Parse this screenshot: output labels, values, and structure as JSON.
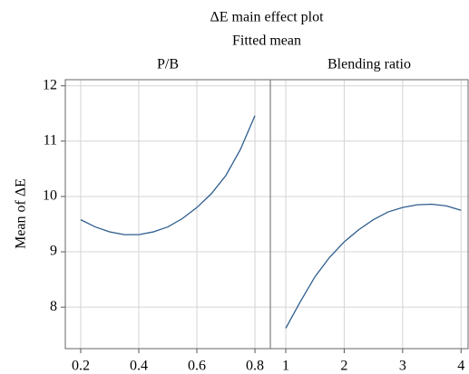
{
  "chart_data": [
    {
      "type": "line",
      "title": "ΔE main effect plot",
      "subtitle": "Fitted mean",
      "y_label": "Mean of ΔE",
      "panel_title": "P/B",
      "color": "#2e5d8e",
      "grid": true,
      "x": [
        0.2,
        0.25,
        0.3,
        0.35,
        0.4,
        0.45,
        0.5,
        0.55,
        0.6,
        0.65,
        0.7,
        0.75,
        0.8
      ],
      "values": [
        9.58,
        9.45,
        9.36,
        9.31,
        9.31,
        9.36,
        9.45,
        9.6,
        9.8,
        10.05,
        10.38,
        10.85,
        11.46
      ],
      "xlim": [
        0.147,
        0.853
      ],
      "xticks": [
        0.2,
        0.4,
        0.6,
        0.8
      ],
      "ylim": [
        7.25,
        12.11
      ],
      "yticks": [
        8,
        9,
        10,
        11,
        12
      ]
    },
    {
      "type": "line",
      "panel_title": "Blending ratio",
      "color": "#2e5d8e",
      "grid": true,
      "x": [
        1,
        1.25,
        1.5,
        1.75,
        2,
        2.25,
        2.5,
        2.75,
        3,
        3.25,
        3.5,
        3.75,
        4
      ],
      "values": [
        7.62,
        8.1,
        8.55,
        8.9,
        9.18,
        9.4,
        9.58,
        9.72,
        9.8,
        9.85,
        9.86,
        9.83,
        9.75
      ],
      "xlim": [
        0.736,
        4.12
      ],
      "xticks": [
        1,
        2,
        3,
        4
      ],
      "ylim": [
        7.25,
        12.11
      ],
      "yticks": [
        8,
        9,
        10,
        11,
        12
      ]
    }
  ]
}
